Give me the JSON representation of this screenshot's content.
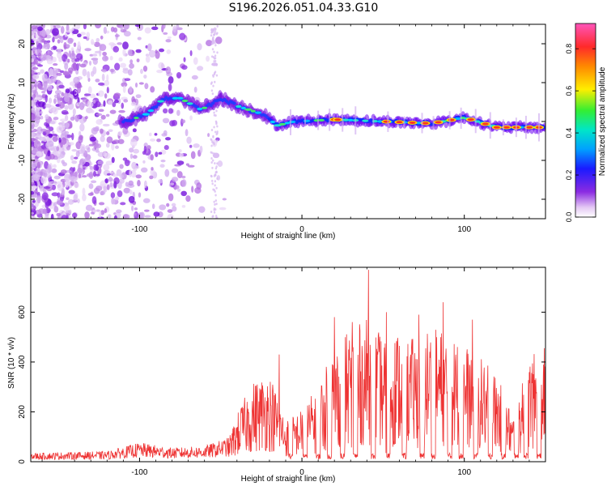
{
  "title": "S196.2026.051.04.33.G10",
  "chart_data": [
    {
      "type": "heatmap",
      "xlabel": "Height of straight line (km)",
      "ylabel": "Frequency (Hz)",
      "xlim": [
        -167,
        150
      ],
      "ylim": [
        -25,
        25
      ],
      "xticks": [
        -100,
        0,
        100
      ],
      "yticks": [
        -20,
        -10,
        0,
        10,
        20
      ],
      "colorbar": {
        "label": "Normalized spectral amplitude",
        "range": [
          0,
          0.92
        ],
        "ticks": [
          0.0,
          0.2,
          0.4,
          0.6,
          0.8
        ]
      },
      "ridge": [
        {
          "x": -108,
          "f": 0
        },
        {
          "x": -95,
          "f": 2
        },
        {
          "x": -85,
          "f": 6
        },
        {
          "x": -75,
          "f": 6
        },
        {
          "x": -62,
          "f": 3
        },
        {
          "x": -50,
          "f": 6
        },
        {
          "x": -40,
          "f": 4
        },
        {
          "x": -25,
          "f": 2
        },
        {
          "x": -15,
          "f": -1
        },
        {
          "x": -5,
          "f": 0
        },
        {
          "x": 20,
          "f": 0.5
        },
        {
          "x": 50,
          "f": 0
        },
        {
          "x": 80,
          "f": -0.5
        },
        {
          "x": 100,
          "f": 1
        },
        {
          "x": 120,
          "f": -1.5
        },
        {
          "x": 150,
          "f": -1.5
        }
      ]
    },
    {
      "type": "line",
      "xlabel": "Height of straight line (km)",
      "ylabel": "SNR (10 * v/v)",
      "xlim": [
        -167,
        150
      ],
      "ylim": [
        0,
        780
      ],
      "xticks": [
        -100,
        0,
        100
      ],
      "yticks": [
        0,
        200,
        400,
        600
      ],
      "color": "#ee3333",
      "envelope": [
        {
          "x": -167,
          "v": 25
        },
        {
          "x": -120,
          "v": 30
        },
        {
          "x": -100,
          "v": 55
        },
        {
          "x": -80,
          "v": 40
        },
        {
          "x": -60,
          "v": 45
        },
        {
          "x": -45,
          "v": 70
        },
        {
          "x": -38,
          "v": 160
        },
        {
          "x": -30,
          "v": 230
        },
        {
          "x": -20,
          "v": 260
        },
        {
          "x": -10,
          "v": 120
        },
        {
          "x": 0,
          "v": 150
        },
        {
          "x": 10,
          "v": 220
        },
        {
          "x": 20,
          "v": 330
        },
        {
          "x": 30,
          "v": 380
        },
        {
          "x": 40,
          "v": 410
        },
        {
          "x": 50,
          "v": 360
        },
        {
          "x": 60,
          "v": 380
        },
        {
          "x": 70,
          "v": 350
        },
        {
          "x": 80,
          "v": 400
        },
        {
          "x": 90,
          "v": 370
        },
        {
          "x": 100,
          "v": 340
        },
        {
          "x": 110,
          "v": 300
        },
        {
          "x": 120,
          "v": 250
        },
        {
          "x": 130,
          "v": 130
        },
        {
          "x": 140,
          "v": 300
        },
        {
          "x": 150,
          "v": 330
        }
      ],
      "peaks": [
        {
          "x": 41,
          "v": 770
        },
        {
          "x": 20,
          "v": 580
        },
        {
          "x": 52,
          "v": 600
        },
        {
          "x": 87,
          "v": 640
        },
        {
          "x": 72,
          "v": 590
        },
        {
          "x": -14,
          "v": 430
        },
        {
          "x": 105,
          "v": 570
        },
        {
          "x": 31,
          "v": 560
        }
      ],
      "dropouts": [
        -7,
        2,
        10,
        17,
        25,
        33,
        44,
        53,
        63,
        74,
        81,
        91,
        98,
        107,
        116,
        124,
        132,
        138,
        146
      ]
    }
  ]
}
